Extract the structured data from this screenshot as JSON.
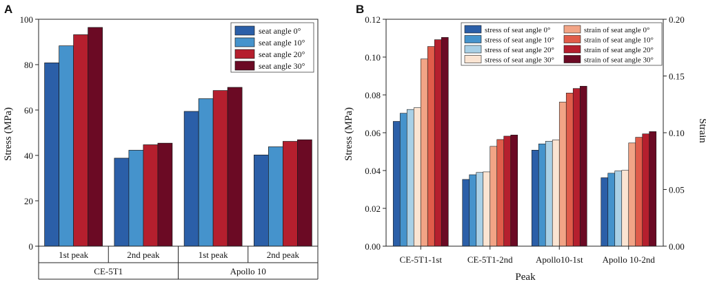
{
  "chart_data": [
    {
      "type": "bar",
      "panel_label": "A",
      "ylabel": "Stress (MPa)",
      "ylim": [
        0,
        100
      ],
      "yticks": [
        0,
        20,
        40,
        60,
        80,
        100
      ],
      "categories": [
        "1st peak",
        "2nd peak",
        "1st peak",
        "2nd peak"
      ],
      "groups": [
        {
          "label": "CE-5T1",
          "span": [
            0,
            1
          ]
        },
        {
          "label": "Apollo 10",
          "span": [
            2,
            3
          ]
        }
      ],
      "legend_position": "top-right",
      "series": [
        {
          "name": "seat angle 0°",
          "color": "#2b5fa8",
          "values": [
            80.8,
            38.8,
            59.4,
            40.2
          ]
        },
        {
          "name": "seat angle 10°",
          "color": "#4593cc",
          "values": [
            88.3,
            42.3,
            65.0,
            43.8
          ]
        },
        {
          "name": "seat angle 20°",
          "color": "#b51f2e",
          "values": [
            93.2,
            44.7,
            68.6,
            46.2
          ]
        },
        {
          "name": "seat angle 30°",
          "color": "#6b0a24",
          "values": [
            96.4,
            45.4,
            70.0,
            46.9
          ]
        }
      ]
    },
    {
      "type": "bar",
      "panel_label": "B",
      "xlabel": "Peak",
      "ylabel": "Stress (MPa)",
      "y2label": "Strain",
      "ylim": [
        0,
        0.12
      ],
      "yticks": [
        "0.00",
        "0.02",
        "0.04",
        "0.06",
        "0.08",
        "0.10",
        "0.12"
      ],
      "y2lim": [
        0,
        0.2
      ],
      "y2ticks": [
        "0.00",
        "0.05",
        "0.10",
        "0.15",
        "0.20"
      ],
      "categories": [
        "CE-5T1-1st",
        "CE-5T1-2nd",
        "Apollo10-1st",
        "Apollo 10-2nd"
      ],
      "legend_position": "top",
      "series": [
        {
          "name": "stress of seat angle 0°",
          "axis": "left",
          "color": "#2b5fa8",
          "values": [
            0.066,
            0.0353,
            0.0508,
            0.0362
          ]
        },
        {
          "name": "stress of seat angle 10°",
          "axis": "left",
          "color": "#4593cc",
          "values": [
            0.0703,
            0.0378,
            0.0541,
            0.0386
          ]
        },
        {
          "name": "stress of seat angle 20°",
          "axis": "left",
          "color": "#a9d0e6",
          "values": [
            0.0723,
            0.039,
            0.0555,
            0.0398
          ]
        },
        {
          "name": "stress of seat angle 30°",
          "axis": "left",
          "color": "#fbe4d2",
          "values": [
            0.0732,
            0.0393,
            0.0562,
            0.0401
          ]
        },
        {
          "name": "strain of seat angle 0°",
          "axis": "right",
          "color": "#f2a486",
          "values": [
            0.165,
            0.088,
            0.127,
            0.091
          ]
        },
        {
          "name": "strain of seat angle 10°",
          "axis": "right",
          "color": "#e05c4a",
          "values": [
            0.176,
            0.094,
            0.135,
            0.096
          ]
        },
        {
          "name": "strain of seat angle 20°",
          "axis": "right",
          "color": "#b51f2e",
          "values": [
            0.182,
            0.097,
            0.139,
            0.099
          ]
        },
        {
          "name": "strain of seat angle 30°",
          "axis": "right",
          "color": "#6b0a24",
          "values": [
            0.184,
            0.098,
            0.141,
            0.101
          ]
        }
      ]
    }
  ]
}
